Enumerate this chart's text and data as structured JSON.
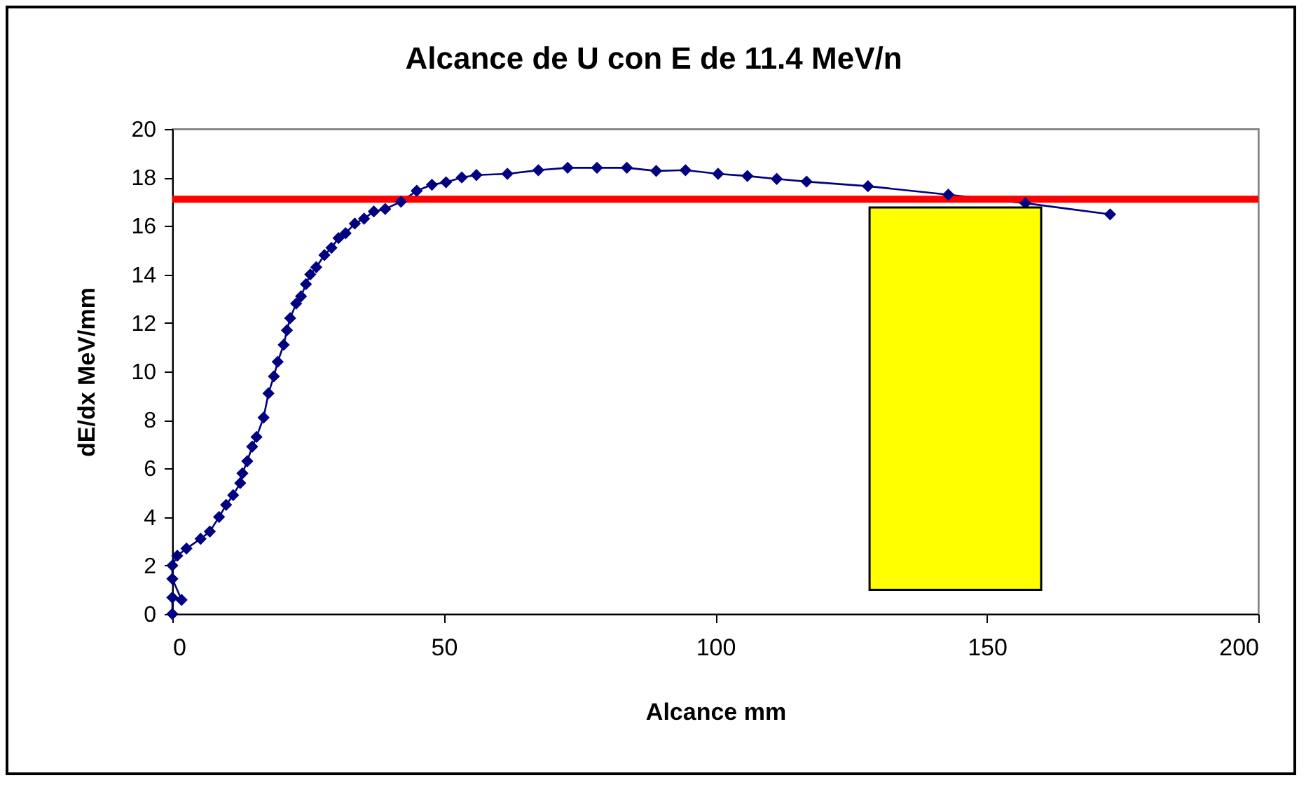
{
  "chart_data": {
    "type": "line",
    "title": "Alcance de U con E de 11.4 MeV/n",
    "xlabel": "Alcance mm",
    "ylabel": "dE/dx  MeV/mm",
    "xlim": [
      0,
      200
    ],
    "xticks": [
      0,
      50,
      100,
      150,
      200
    ],
    "ylim": [
      0,
      20
    ],
    "yticks": [
      0,
      2,
      4,
      6,
      8,
      10,
      12,
      14,
      16,
      18,
      20
    ],
    "grid": false,
    "marker": "diamond",
    "line_style": "solid",
    "series": [
      {
        "color": "#000080",
        "x": [
          0,
          0,
          1.7,
          0,
          0,
          0.9,
          2.6,
          5.2,
          6.9,
          8.6,
          9.9,
          11.2,
          12.5,
          12.9,
          13.8,
          14.7,
          15.5,
          16.8,
          17.7,
          18.7,
          19.4,
          20.5,
          21.1,
          21.7,
          22.8,
          23.7,
          24.6,
          25.4,
          26.5,
          28.0,
          29.3,
          30.6,
          31.9,
          33.6,
          35.3,
          37.1,
          39.2,
          42.1,
          45.0,
          47.8,
          50.4,
          53.3,
          56.0,
          61.7,
          67.4,
          72.8,
          78.2,
          83.7,
          89.1,
          94.5,
          100.5,
          105.9,
          111.3,
          116.8,
          128.1,
          142.9,
          157.1,
          172.7
        ],
        "values": [
          0,
          0.68,
          0.58,
          1.45,
          2.0,
          2.4,
          2.7,
          3.1,
          3.4,
          4.0,
          4.5,
          4.9,
          5.4,
          5.8,
          6.3,
          6.9,
          7.3,
          8.1,
          9.1,
          9.8,
          10.4,
          11.1,
          11.7,
          12.2,
          12.8,
          13.1,
          13.6,
          14.0,
          14.3,
          14.8,
          15.1,
          15.5,
          15.7,
          16.1,
          16.3,
          16.6,
          16.7,
          17.0,
          17.45,
          17.7,
          17.8,
          18.0,
          18.1,
          18.15,
          18.3,
          18.4,
          18.4,
          18.4,
          18.27,
          18.3,
          18.15,
          18.06,
          17.94,
          17.83,
          17.64,
          17.29,
          16.94,
          16.48
        ]
      }
    ],
    "ref_lines": [
      {
        "axis": "y",
        "value": 17.1,
        "color": "#ff0000"
      }
    ]
  }
}
